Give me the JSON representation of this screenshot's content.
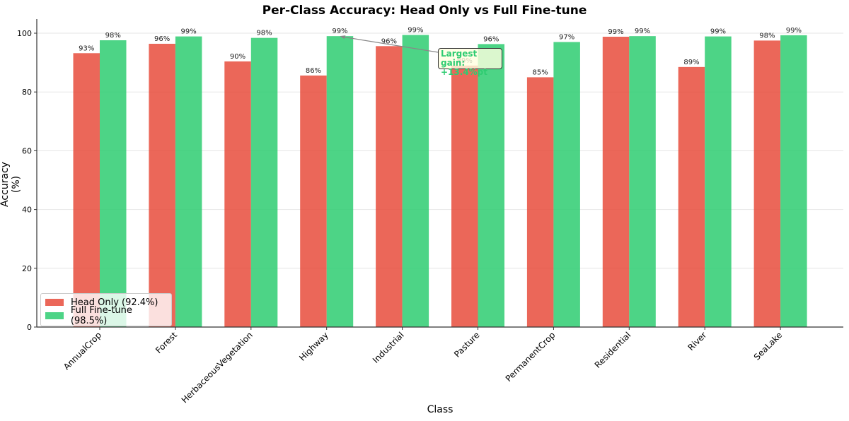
{
  "chart_data": {
    "type": "bar",
    "title": "Per-Class Accuracy: Head Only vs Full Fine-tune",
    "xlabel": "Class",
    "ylabel": "Accuracy (%)",
    "ylim": [
      0,
      105
    ],
    "yticks": [
      0,
      20,
      40,
      60,
      80,
      100
    ],
    "grid": "y",
    "legend_position": "lower left",
    "categories": [
      "AnnualCrop",
      "Forest",
      "HerbaceousVegetation",
      "Highway",
      "Industrial",
      "Pasture",
      "PermanentCrop",
      "Residential",
      "River",
      "SeaLake"
    ],
    "series": [
      {
        "name": "Head Only (92.4%)",
        "color": "#e74c3c",
        "values": [
          93.2,
          96.4,
          90.4,
          85.6,
          95.6,
          89.0,
          85.0,
          98.8,
          88.5,
          97.5
        ],
        "labels": [
          "93%",
          "96%",
          "90%",
          "86%",
          "96%",
          "89%",
          "85%",
          "99%",
          "89%",
          "98%"
        ]
      },
      {
        "name": "Full Fine-tune (98.5%)",
        "color": "#2ecc71",
        "values": [
          97.6,
          98.9,
          98.4,
          99.0,
          99.4,
          96.3,
          97.0,
          99.0,
          98.9,
          99.3
        ],
        "labels": [
          "98%",
          "99%",
          "98%",
          "99%",
          "99%",
          "96%",
          "97%",
          "99%",
          "99%",
          "99%"
        ]
      }
    ],
    "annotations": [
      {
        "text_line1": "Largest gain:",
        "text_line2": "+13.4%pt",
        "target_category": "Highway",
        "target_series": "Full Fine-tune"
      }
    ]
  },
  "title": "Per-Class Accuracy: Head Only vs Full Fine-tune",
  "xlabel": "Class",
  "ylabel": "Accuracy (%)",
  "legend": {
    "head": "Head Only (92.4%)",
    "full": "Full Fine-tune (98.5%)"
  },
  "annotation": {
    "line1": "Largest gain:",
    "line2": "+13.4%pt"
  }
}
